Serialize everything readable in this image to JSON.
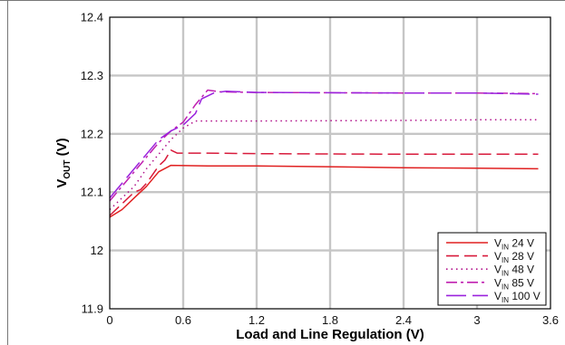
{
  "chart_data": {
    "type": "line",
    "xlabel": "Load and Line Regulation (V)",
    "ylabel": {
      "main": "V",
      "sub": "OUT",
      "unit": " (V)"
    },
    "xlim": [
      0,
      3.6
    ],
    "ylim": [
      11.9,
      12.4
    ],
    "x_ticks": [
      "0",
      "0.6",
      "1.2",
      "1.8",
      "2.4",
      "3",
      "3.6"
    ],
    "y_ticks": [
      "11.9",
      "12",
      "12.1",
      "12.2",
      "12.3",
      "12.4"
    ],
    "grid": true,
    "legend_position": "bottom-right",
    "series": [
      {
        "name": "24 V",
        "legend_prefix": "V",
        "legend_sub": "IN",
        "color": "#e02020",
        "dash": "solid",
        "points": [
          [
            0,
            12.057
          ],
          [
            0.1,
            12.07
          ],
          [
            0.2,
            12.09
          ],
          [
            0.3,
            12.11
          ],
          [
            0.4,
            12.135
          ],
          [
            0.5,
            12.146
          ],
          [
            0.8,
            12.145
          ],
          [
            1.2,
            12.145
          ],
          [
            2.0,
            12.143
          ],
          [
            2.4,
            12.142
          ],
          [
            3.0,
            12.141
          ],
          [
            3.5,
            12.14
          ]
        ]
      },
      {
        "name": "28 V",
        "legend_prefix": "V",
        "legend_sub": "IN",
        "color": "#d81b3c",
        "dash": "long",
        "points": [
          [
            0,
            12.06
          ],
          [
            0.1,
            12.08
          ],
          [
            0.2,
            12.1
          ],
          [
            0.25,
            12.104
          ],
          [
            0.3,
            12.115
          ],
          [
            0.4,
            12.145
          ],
          [
            0.45,
            12.155
          ],
          [
            0.5,
            12.172
          ],
          [
            0.55,
            12.167
          ],
          [
            0.8,
            12.167
          ],
          [
            1.2,
            12.166
          ],
          [
            2.4,
            12.165
          ],
          [
            3.0,
            12.165
          ],
          [
            3.5,
            12.165
          ]
        ]
      },
      {
        "name": "48 V",
        "legend_prefix": "V",
        "legend_sub": "IN",
        "color": "#b0108a",
        "dash": "dot",
        "points": [
          [
            0,
            12.07
          ],
          [
            0.1,
            12.09
          ],
          [
            0.2,
            12.11
          ],
          [
            0.3,
            12.14
          ],
          [
            0.4,
            12.165
          ],
          [
            0.5,
            12.19
          ],
          [
            0.6,
            12.21
          ],
          [
            0.7,
            12.222
          ],
          [
            1.2,
            12.222
          ],
          [
            2.4,
            12.223
          ],
          [
            3.0,
            12.224
          ],
          [
            3.5,
            12.224
          ]
        ]
      },
      {
        "name": "85 V",
        "legend_prefix": "V",
        "legend_sub": "IN",
        "color": "#c020b0",
        "dash": "dashdot",
        "points": [
          [
            0,
            12.085
          ],
          [
            0.1,
            12.11
          ],
          [
            0.2,
            12.135
          ],
          [
            0.3,
            12.16
          ],
          [
            0.4,
            12.185
          ],
          [
            0.5,
            12.205
          ],
          [
            0.6,
            12.22
          ],
          [
            0.7,
            12.25
          ],
          [
            0.8,
            12.275
          ],
          [
            0.9,
            12.272
          ],
          [
            1.2,
            12.271
          ],
          [
            2.4,
            12.27
          ],
          [
            3.0,
            12.27
          ],
          [
            3.5,
            12.269
          ]
        ]
      },
      {
        "name": "100 V",
        "legend_prefix": "V",
        "legend_sub": "IN",
        "color": "#9a22dd",
        "dash": "longdash",
        "points": [
          [
            0,
            12.09
          ],
          [
            0.1,
            12.115
          ],
          [
            0.2,
            12.14
          ],
          [
            0.3,
            12.165
          ],
          [
            0.4,
            12.19
          ],
          [
            0.5,
            12.205
          ],
          [
            0.6,
            12.215
          ],
          [
            0.7,
            12.235
          ],
          [
            0.75,
            12.26
          ],
          [
            0.85,
            12.27
          ],
          [
            0.95,
            12.273
          ],
          [
            1.2,
            12.271
          ],
          [
            2.4,
            12.27
          ],
          [
            3.0,
            12.27
          ],
          [
            3.5,
            12.268
          ]
        ]
      }
    ]
  }
}
